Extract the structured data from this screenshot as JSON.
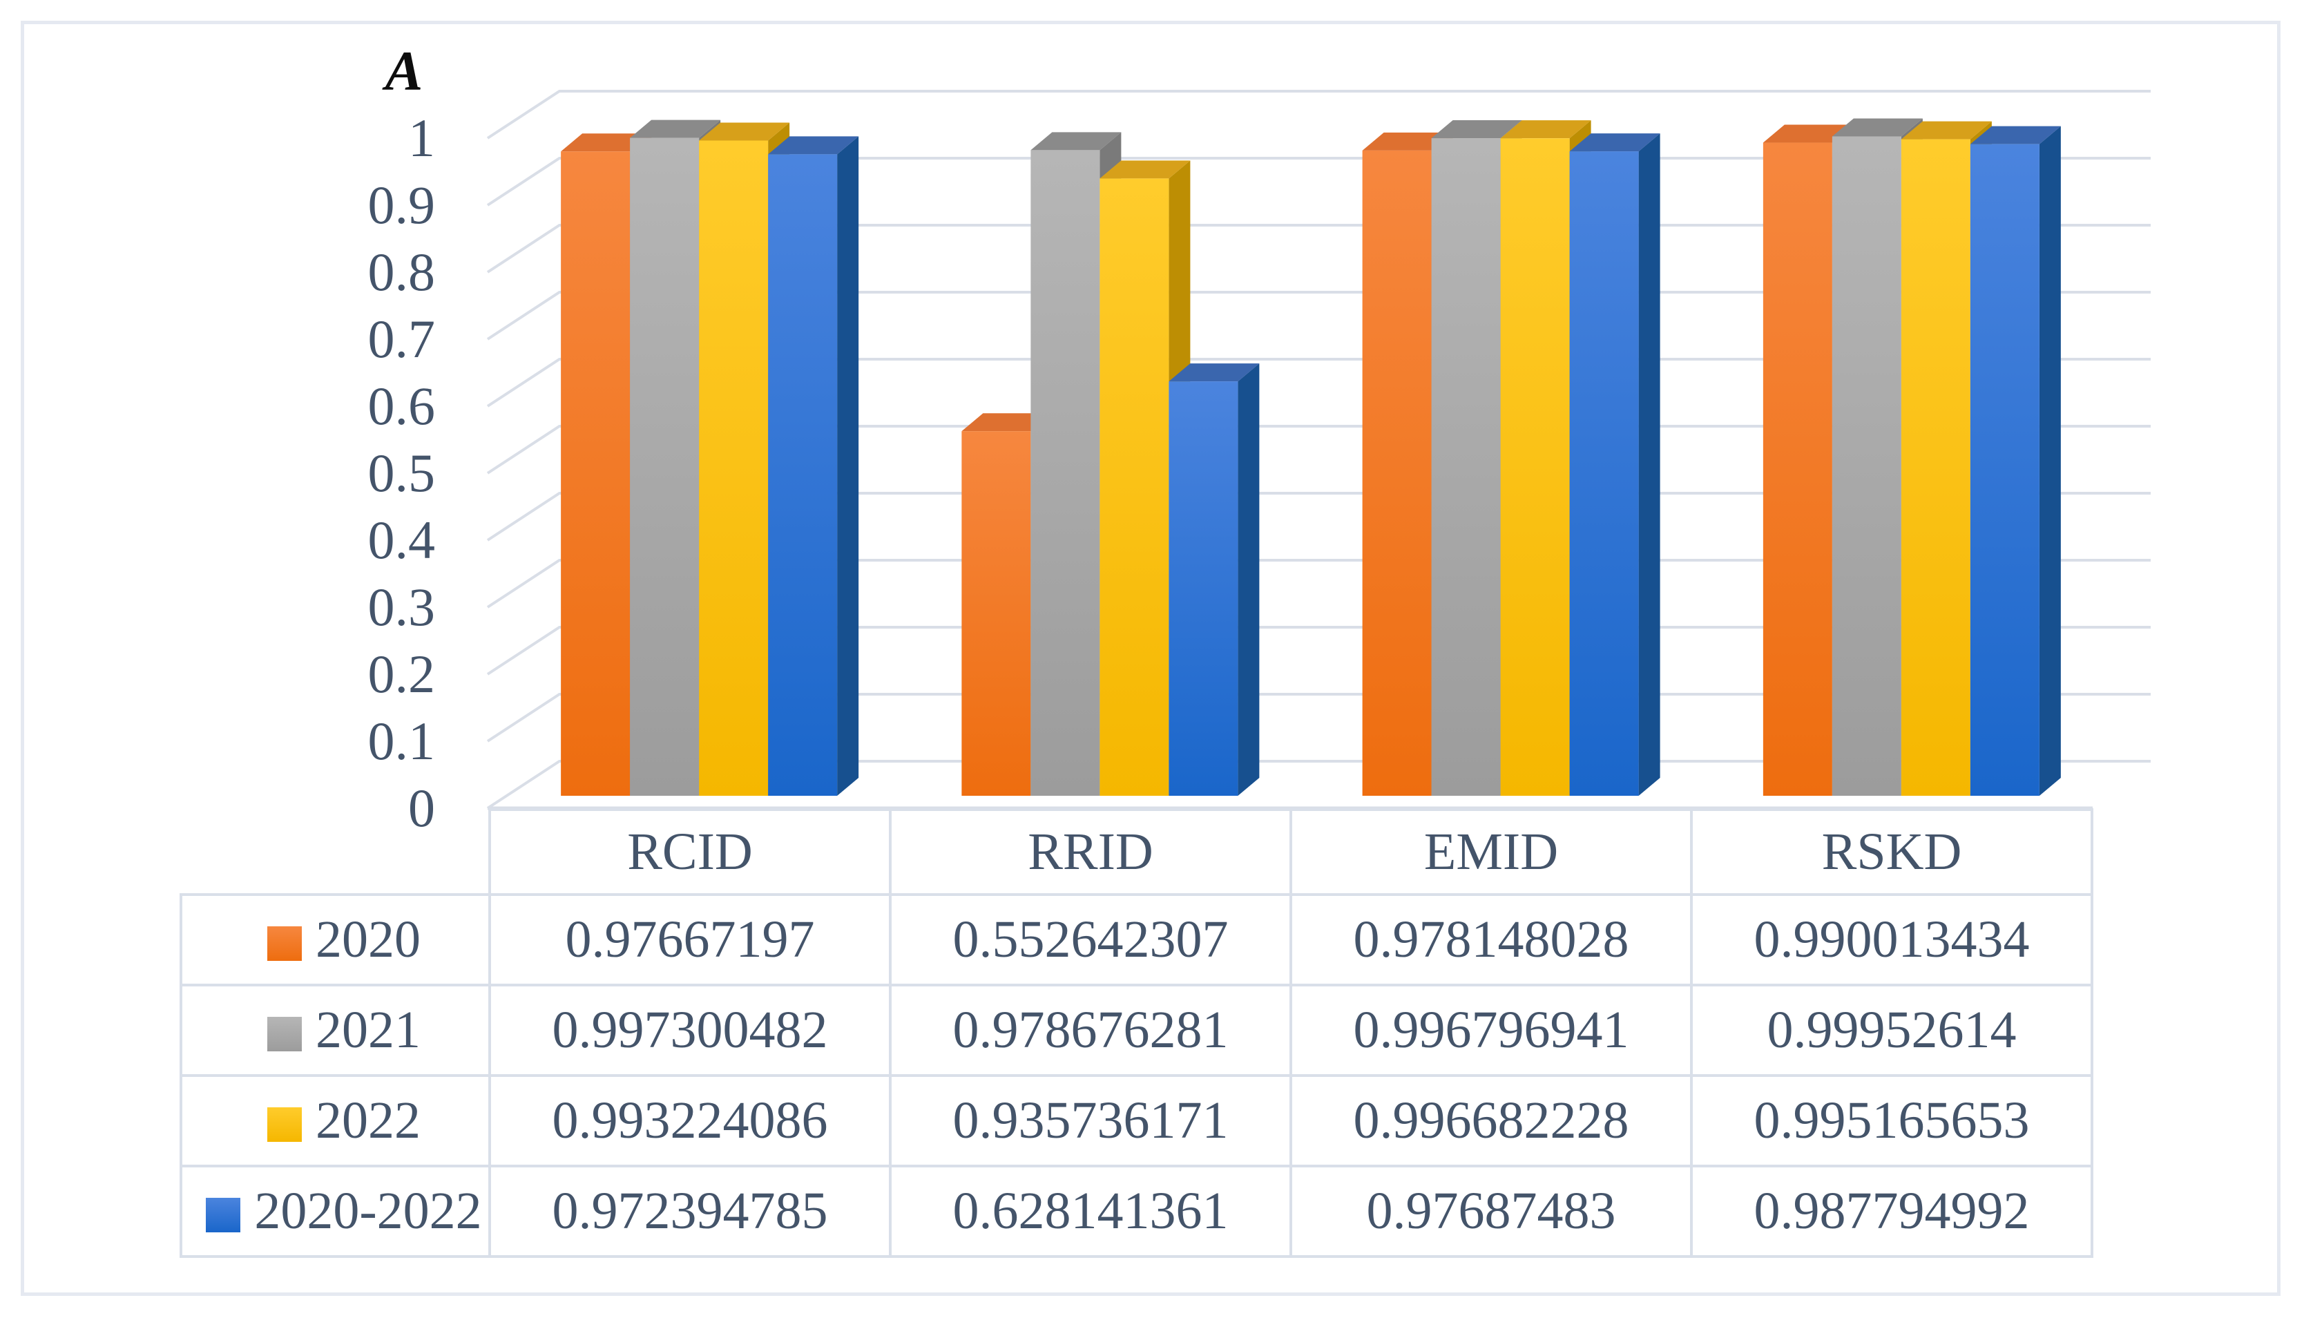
{
  "figure": {
    "background": "#FFFFFF",
    "border_color": "#E5E9F1",
    "text_color": "#44546A"
  },
  "chart_data": {
    "type": "bar",
    "subtype": "3d-clustered-column",
    "title": "",
    "y_axis": {
      "title": "A",
      "min": 0,
      "max": 1,
      "tick_step": 0.1,
      "tick_labels": [
        "1",
        "0.9",
        "0.8",
        "0.7",
        "0.6",
        "0.5",
        "0.4",
        "0.3",
        "0.2",
        "0.1",
        "0"
      ]
    },
    "categories": [
      "RCID",
      "RRID",
      "EMID",
      "RSKD"
    ],
    "series": [
      {
        "name": "2020",
        "values": [
          0.97667197,
          0.552642307,
          0.978148028,
          0.990013434
        ],
        "labels": [
          "0.97667197",
          "0.552642307",
          "0.978148028",
          "0.990013434"
        ],
        "color_front_top": "#F6873F",
        "color_front_bottom": "#EE6D0F",
        "color_top": "#DE7030",
        "color_side": "#C05B17"
      },
      {
        "name": "2021",
        "values": [
          0.997300482,
          0.978676281,
          0.996796941,
          0.99952614
        ],
        "labels": [
          "0.997300482",
          "0.978676281",
          "0.996796941",
          "0.99952614"
        ],
        "color_front_top": "#B6B6B6",
        "color_front_bottom": "#9C9C9C",
        "color_top": "#8A8A8A",
        "color_side": "#7A7A7A"
      },
      {
        "name": "2022",
        "values": [
          0.993224086,
          0.935736171,
          0.996682228,
          0.995165653
        ],
        "labels": [
          "0.993224086",
          "0.935736171",
          "0.996682228",
          "0.995165653"
        ],
        "color_front_top": "#FFCC2C",
        "color_front_bottom": "#F5B700",
        "color_top": "#D7A01A",
        "color_side": "#BD8E03"
      },
      {
        "name": "2020-2022",
        "values": [
          0.972394785,
          0.628141361,
          0.97687483,
          0.987794992
        ],
        "labels": [
          "0.972394785",
          "0.628141361",
          "0.97687483",
          "0.987794992"
        ],
        "color_front_top": "#4B84DE",
        "color_front_bottom": "#1A66CA",
        "color_top": "#3A66AE",
        "color_side": "#17508F"
      }
    ],
    "grid": true,
    "gridline_color": "#D9DEE7",
    "legend_position": "table-rows"
  }
}
